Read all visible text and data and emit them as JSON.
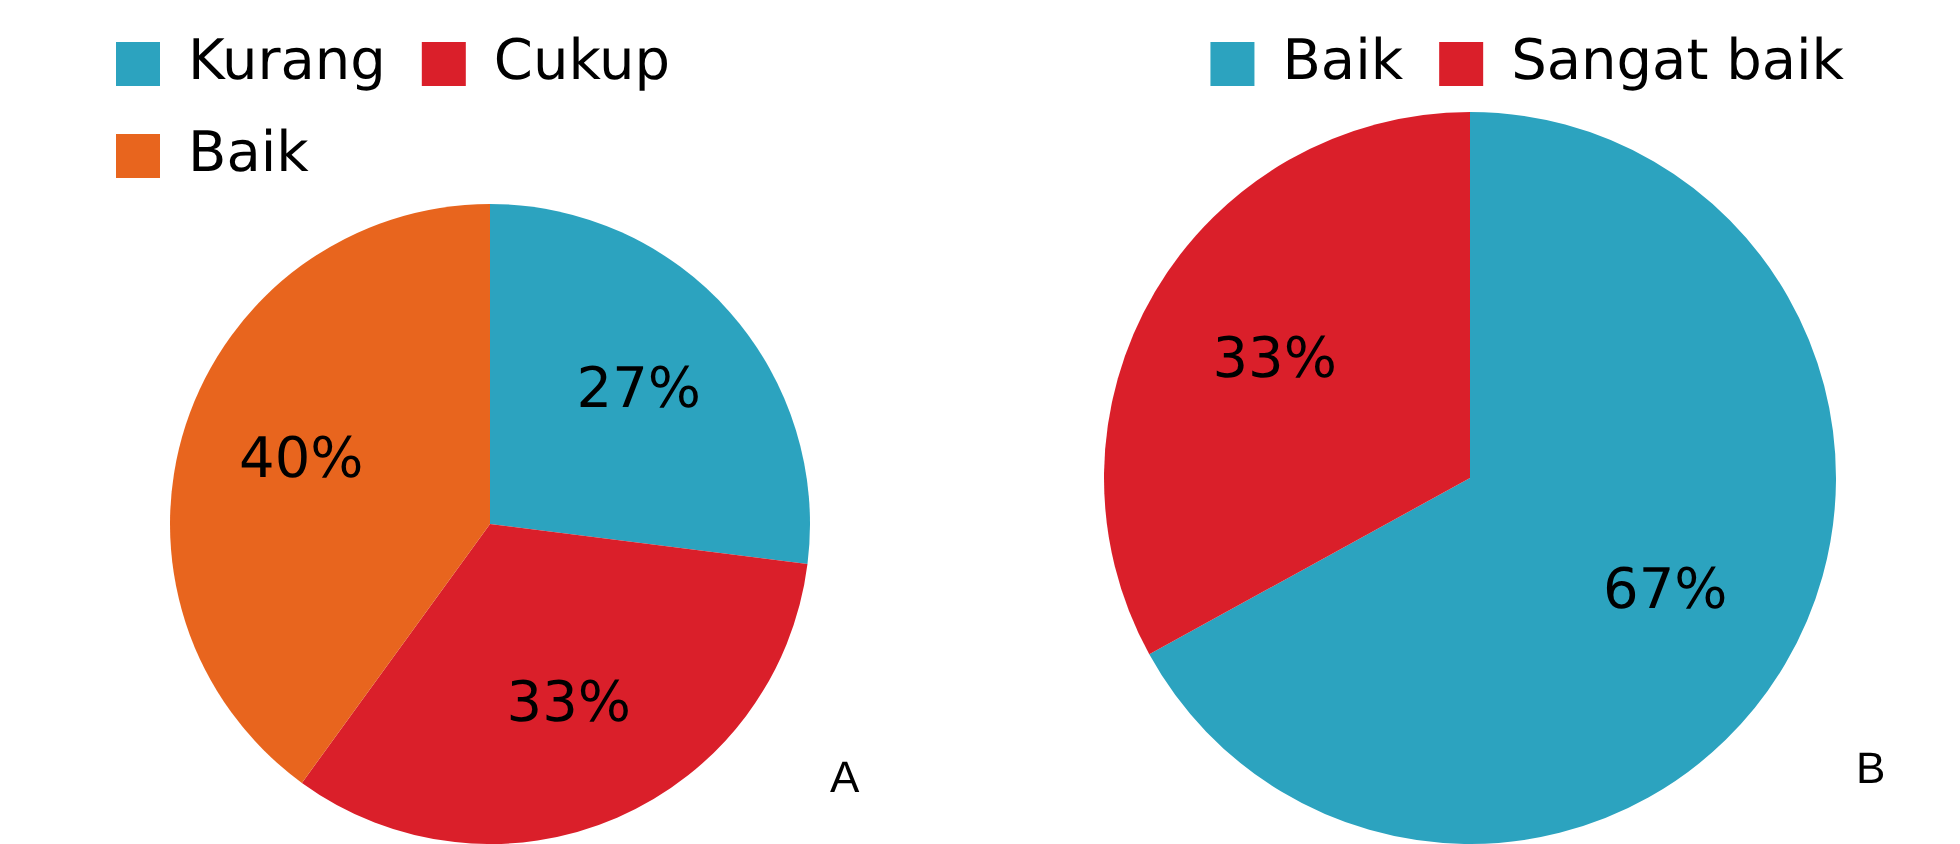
{
  "chart_data": [
    {
      "type": "pie",
      "categories": [
        "Kurang",
        "Cukup",
        "Baik"
      ],
      "values": [
        27,
        33,
        40
      ],
      "colors": [
        "#2ca3bf",
        "#da1f2a",
        "#e8651e"
      ],
      "value_labels": [
        "27%",
        "33%",
        "40%"
      ],
      "legend": "top left",
      "annotations": [
        "A"
      ]
    },
    {
      "type": "pie",
      "categories": [
        "Baik",
        "Sangat baik"
      ],
      "values": [
        67,
        33
      ],
      "colors": [
        "#2ca3bf",
        "#da1f2a"
      ],
      "value_labels": [
        "67%",
        "33%"
      ],
      "legend": "top right",
      "annotations": [
        "B"
      ]
    }
  ]
}
